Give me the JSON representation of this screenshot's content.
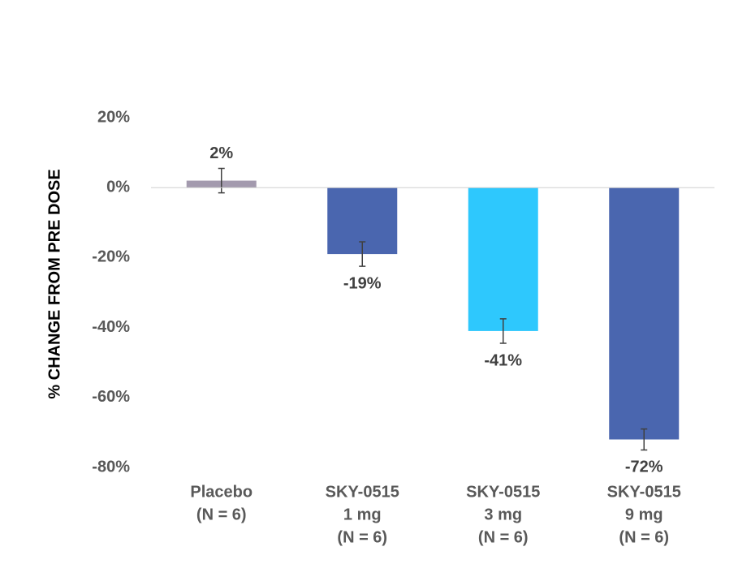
{
  "chart_data": {
    "type": "bar",
    "y_label": "% CHANGE FROM PRE DOSE",
    "categories": [
      [
        "Placebo",
        "(N = 6)"
      ],
      [
        "SKY-0515",
        "1 mg",
        "(N = 6)"
      ],
      [
        "SKY-0515",
        "3 mg",
        "(N = 6)"
      ],
      [
        "SKY-0515",
        "9 mg",
        "(N = 6)"
      ]
    ],
    "values": [
      2,
      -19,
      -41,
      -72
    ],
    "value_labels": [
      "2%",
      "-19%",
      "-41%",
      "-72%"
    ],
    "errors": [
      3.5,
      3.5,
      3.5,
      3
    ],
    "colors": [
      "#a39aae",
      "#4a66af",
      "#2ec8fd",
      "#4a66af"
    ],
    "ylim": [
      -80,
      20
    ],
    "yticks": [
      {
        "value": 20,
        "label": "20%"
      },
      {
        "value": 0,
        "label": "0%"
      },
      {
        "value": -20,
        "label": "-20%"
      },
      {
        "value": -40,
        "label": "-40%"
      },
      {
        "value": -60,
        "label": "-60%"
      },
      {
        "value": -80,
        "label": "-80%"
      }
    ]
  }
}
